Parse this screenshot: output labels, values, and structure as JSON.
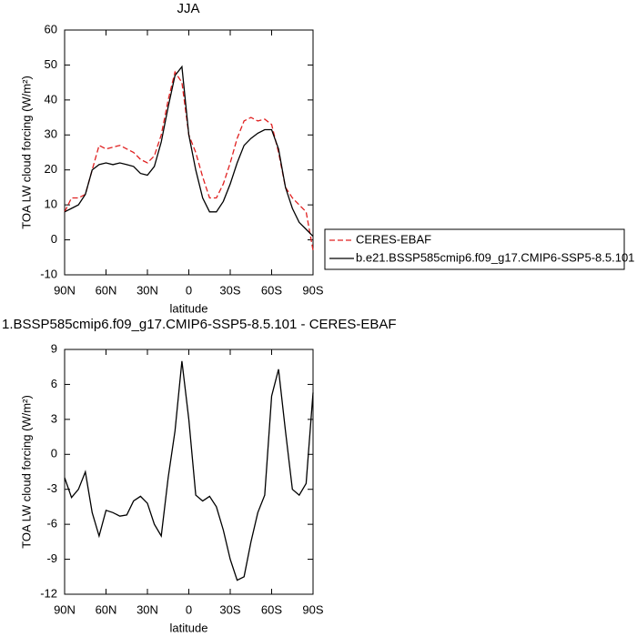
{
  "chart_data": [
    {
      "type": "line",
      "title": "JJA",
      "xlabel": "latitude",
      "ylabel": "TOA LW cloud forcing (W/m²)",
      "x": [
        90,
        85,
        80,
        75,
        70,
        65,
        60,
        55,
        50,
        45,
        40,
        35,
        30,
        25,
        20,
        15,
        10,
        5,
        0,
        -5,
        -10,
        -15,
        -20,
        -25,
        -30,
        -35,
        -40,
        -45,
        -50,
        -55,
        -60,
        -65,
        -70,
        -75,
        -80,
        -85,
        -90
      ],
      "series": [
        {
          "name": "CERES-EBAF",
          "color": "#e02020",
          "line_style": "dashed",
          "values": [
            8,
            12,
            12,
            13,
            20,
            27,
            26,
            26.5,
            27,
            26,
            25,
            23,
            22,
            24,
            30,
            40,
            48,
            45,
            30,
            25,
            18,
            12,
            12,
            16,
            22,
            29,
            34,
            35,
            34,
            34.5,
            33,
            25,
            15,
            12,
            10,
            8,
            -3
          ]
        },
        {
          "name": "b.e21.BSSP585cmip6.f09_g17.CMIP6-SSP5-8.5.101",
          "color": "#000000",
          "line_style": "solid",
          "values": [
            8,
            9,
            10,
            13,
            20,
            21.5,
            22,
            21.5,
            22,
            21.5,
            21,
            19,
            18.5,
            21,
            28,
            38,
            47,
            49.5,
            30,
            20,
            12,
            8,
            8,
            11,
            16,
            22,
            27,
            29,
            30.5,
            31.5,
            31.5,
            26,
            15,
            9,
            5,
            3,
            1
          ]
        }
      ],
      "xlim": [
        90,
        -90
      ],
      "xticks": [
        {
          "value": 90,
          "label": "90N"
        },
        {
          "value": 60,
          "label": "60N"
        },
        {
          "value": 30,
          "label": "30N"
        },
        0,
        {
          "value": -30,
          "label": "30S"
        },
        {
          "value": -60,
          "label": "60S"
        },
        {
          "value": -90,
          "label": "90S"
        }
      ],
      "ylim": [
        -10,
        60
      ],
      "yticks": [
        -10,
        0,
        10,
        20,
        30,
        40,
        50,
        60
      ],
      "legend": "outside-right"
    },
    {
      "type": "line",
      "title": "1.BSSP585cmip6.f09_g17.CMIP6-SSP5-8.5.101 - CERES-EBAF",
      "xlabel": "latitude",
      "ylabel": "TOA LW cloud forcing (W/m²)",
      "x": [
        90,
        85,
        80,
        75,
        70,
        65,
        60,
        55,
        50,
        45,
        40,
        35,
        30,
        25,
        20,
        15,
        10,
        5,
        0,
        -5,
        -10,
        -15,
        -20,
        -25,
        -30,
        -35,
        -40,
        -45,
        -50,
        -55,
        -60,
        -65,
        -70,
        -75,
        -80,
        -85,
        -90
      ],
      "series": [
        {
          "color": "#000000",
          "line_style": "solid",
          "values": [
            -2,
            -3.7,
            -3,
            -1.5,
            -5,
            -7,
            -4.8,
            -5,
            -5.3,
            -5.2,
            -4,
            -3.6,
            -4.2,
            -6,
            -7,
            -2,
            2,
            8,
            3,
            -3.5,
            -4,
            -3.6,
            -4.5,
            -6.5,
            -9,
            -10.8,
            -10.5,
            -7.5,
            -5,
            -3.5,
            5,
            7.3,
            2,
            -3,
            -3.5,
            -2.5,
            5.3
          ]
        }
      ],
      "xlim": [
        90,
        -90
      ],
      "xticks": [
        {
          "value": 90,
          "label": "90N"
        },
        {
          "value": 60,
          "label": "60N"
        },
        {
          "value": 30,
          "label": "30N"
        },
        0,
        {
          "value": -30,
          "label": "30S"
        },
        {
          "value": -60,
          "label": "60S"
        },
        {
          "value": -90,
          "label": "90S"
        }
      ],
      "ylim": [
        -12,
        9
      ],
      "yticks": [
        -12,
        -9,
        -6,
        -3,
        0,
        3,
        6,
        9
      ]
    }
  ]
}
